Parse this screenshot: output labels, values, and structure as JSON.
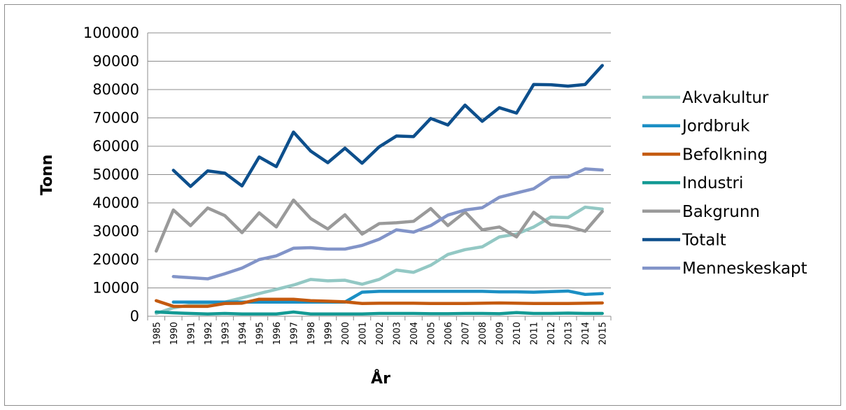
{
  "chart_data": {
    "type": "line",
    "title": "",
    "xlabel": "År",
    "ylabel": "Tonn",
    "ylim": [
      0,
      100000
    ],
    "yticks": [
      0,
      10000,
      20000,
      30000,
      40000,
      50000,
      60000,
      70000,
      80000,
      90000,
      100000
    ],
    "grid": "horizontal",
    "legend_position": "right",
    "categories": [
      "1985",
      "1990",
      "1991",
      "1992",
      "1993",
      "1994",
      "1995",
      "1996",
      "1997",
      "1998",
      "1999",
      "2000",
      "2001",
      "2002",
      "2003",
      "2004",
      "2005",
      "2006",
      "2007",
      "2008",
      "2009",
      "2010",
      "2011",
      "2012",
      "2013",
      "2014",
      "2015"
    ],
    "series": [
      {
        "name": "Akvakultur",
        "color": "#93c8c4",
        "values": [
          1000,
          3000,
          4000,
          4500,
          5000,
          6500,
          8000,
          9500,
          11000,
          13000,
          12500,
          12700,
          11300,
          13000,
          16300,
          15500,
          18000,
          21800,
          23500,
          24500,
          28000,
          29000,
          31500,
          35000,
          34800,
          38500,
          37800
        ]
      },
      {
        "name": "Jordbruk",
        "color": "#1b8fc4",
        "values": [
          null,
          5000,
          5000,
          5000,
          5000,
          5000,
          5000,
          5000,
          5000,
          5000,
          5000,
          5000,
          8500,
          8800,
          8800,
          8800,
          8800,
          8800,
          8800,
          8800,
          8600,
          8600,
          8500,
          8700,
          8900,
          7700,
          8000
        ]
      },
      {
        "name": "Befolkning",
        "color": "#c45a0f",
        "values": [
          5500,
          3500,
          3500,
          3500,
          4500,
          4600,
          6000,
          6000,
          6000,
          5500,
          5300,
          5100,
          4500,
          4600,
          4600,
          4600,
          4500,
          4500,
          4500,
          4600,
          4700,
          4600,
          4500,
          4500,
          4500,
          4600,
          4700
        ]
      },
      {
        "name": "Industri",
        "color": "#149a94",
        "values": [
          1500,
          1200,
          1000,
          800,
          1000,
          800,
          800,
          800,
          1500,
          800,
          800,
          800,
          800,
          1000,
          1000,
          1000,
          900,
          900,
          1000,
          1000,
          900,
          1300,
          1000,
          1000,
          1100,
          1000,
          1000
        ]
      },
      {
        "name": "Bakgrunn",
        "color": "#9a9a9a",
        "values": [
          23000,
          37500,
          32000,
          38200,
          35500,
          29500,
          36500,
          31500,
          41000,
          34500,
          30800,
          35800,
          29000,
          32700,
          33000,
          33500,
          38000,
          32000,
          36800,
          30500,
          31500,
          28000,
          36700,
          32300,
          31700,
          30000,
          37000
        ]
      },
      {
        "name": "Totalt",
        "color": "#0d4f8c",
        "values": [
          null,
          51500,
          45800,
          51300,
          50500,
          46000,
          56200,
          52800,
          65000,
          58300,
          54200,
          59300,
          54000,
          59800,
          63600,
          63400,
          69800,
          67500,
          74500,
          68800,
          73600,
          71700,
          81800,
          81700,
          81200,
          81800,
          88500
        ]
      },
      {
        "name": "Menneskeskapt",
        "color": "#8294c8",
        "values": [
          null,
          14000,
          13600,
          13200,
          15000,
          17000,
          20000,
          21300,
          24000,
          24200,
          23700,
          23700,
          25000,
          27200,
          30500,
          29700,
          32000,
          35700,
          37500,
          38300,
          42000,
          43500,
          45000,
          49000,
          49200,
          52000,
          51600
        ]
      }
    ]
  }
}
